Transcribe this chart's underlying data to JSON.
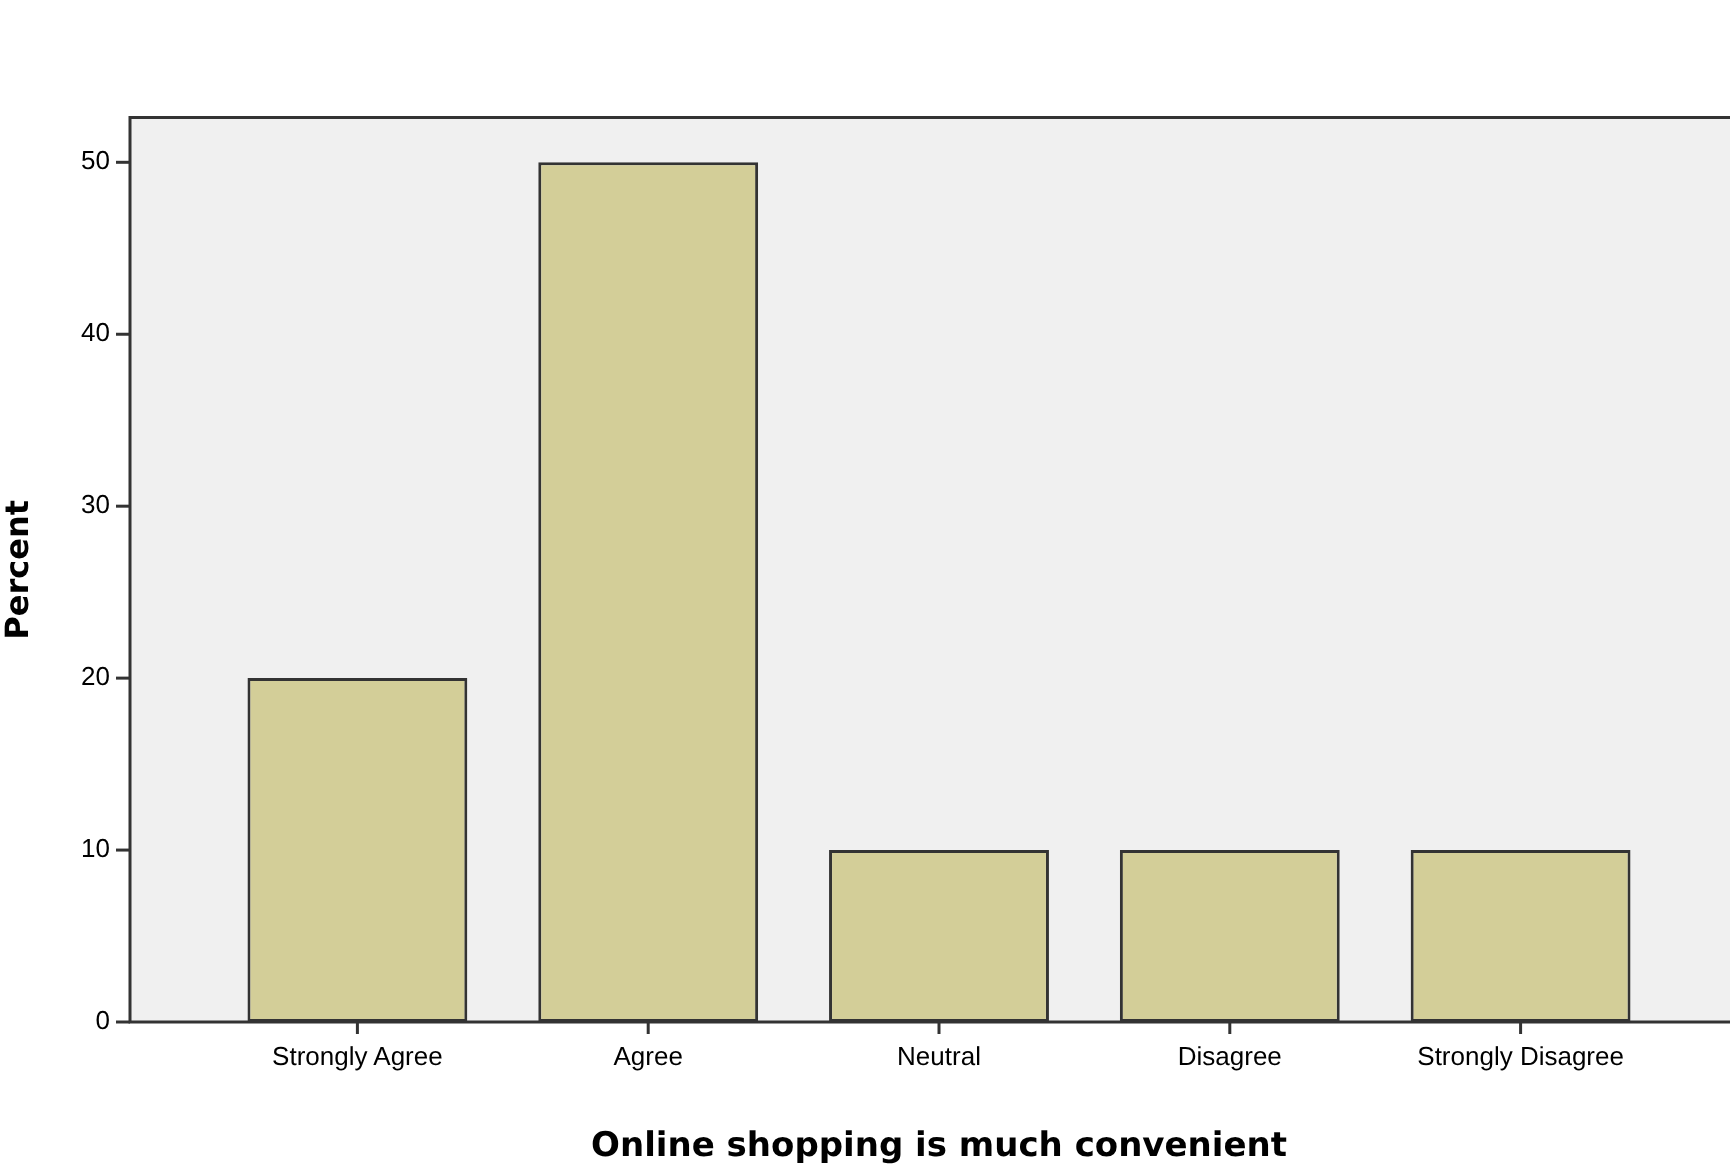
{
  "chart_data": {
    "type": "bar",
    "xlabel": "Online shopping is much convenient",
    "ylabel": "Percent",
    "categories": [
      "Strongly Agree",
      "Agree",
      "Neutral",
      "Disagree",
      "Strongly Disagree"
    ],
    "values": [
      20,
      50,
      10,
      10,
      10
    ],
    "color": "#d3ce98",
    "ylim": [
      0,
      52.6
    ],
    "yticks": [
      0,
      10,
      20,
      30,
      40,
      50
    ],
    "grid": false,
    "legend": false
  }
}
